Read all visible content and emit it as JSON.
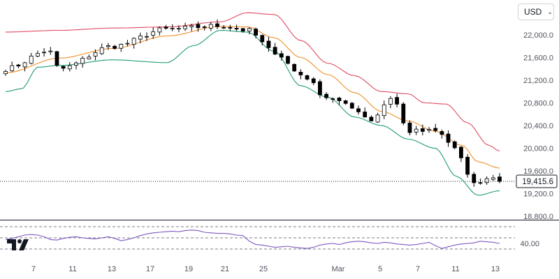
{
  "currency_selector": {
    "value": "USD"
  },
  "colors": {
    "up": "#000000",
    "down": "#000000",
    "upper_band": "#e04a5f",
    "middle_band": "#f0902a",
    "lower_band": "#1f9a7a",
    "rsi": "#7e57c2",
    "last_price_bg": "#ffffff",
    "axis_text": "#50535e",
    "grid_dash": "#50535e"
  },
  "icons": {
    "logo": "tradingview-logo-icon",
    "dropdown": "chevron-down-icon"
  },
  "chart_data": [
    {
      "type": "candlestick",
      "title": "",
      "y_ticks": [
        "22,000.0",
        "21,600.0",
        "21,200.0",
        "20,800.0",
        "20,400.0",
        "20,000.0",
        "19,600.0",
        "19,200.0",
        "18,800.0"
      ],
      "y_tick_values": [
        22000,
        21600,
        21200,
        20800,
        20400,
        20000,
        19600,
        19200,
        18800
      ],
      "ylim": [
        18800,
        22400
      ],
      "x_ticks": [
        "7",
        "11",
        "13",
        "17",
        "19",
        "21",
        "25",
        "Mar",
        "5",
        "7",
        "11",
        "13"
      ],
      "last_price": 19415.6,
      "last_price_label": "19,415.6",
      "overlays": [
        "Bollinger upper",
        "Bollinger basis",
        "Bollinger lower"
      ],
      "bollinger_anchors": {
        "upper": [
          [
            0,
            22050
          ],
          [
            0.1,
            22080
          ],
          [
            0.2,
            22120
          ],
          [
            0.3,
            22140
          ],
          [
            0.4,
            22230
          ],
          [
            0.45,
            22390
          ],
          [
            0.5,
            22360
          ],
          [
            0.55,
            21900
          ],
          [
            0.6,
            21500
          ],
          [
            0.65,
            21280
          ],
          [
            0.7,
            21000
          ],
          [
            0.75,
            20960
          ],
          [
            0.78,
            20800
          ],
          [
            0.82,
            20780
          ],
          [
            0.86,
            20450
          ],
          [
            0.9,
            20050
          ],
          [
            0.92,
            19950
          ]
        ],
        "middle": [
          [
            0,
            21330
          ],
          [
            0.1,
            21590
          ],
          [
            0.2,
            21760
          ],
          [
            0.3,
            21980
          ],
          [
            0.4,
            22150
          ],
          [
            0.45,
            22140
          ],
          [
            0.5,
            21950
          ],
          [
            0.55,
            21600
          ],
          [
            0.6,
            21300
          ],
          [
            0.65,
            20980
          ],
          [
            0.7,
            20650
          ],
          [
            0.75,
            20480
          ],
          [
            0.8,
            20300
          ],
          [
            0.85,
            20050
          ],
          [
            0.88,
            19760
          ],
          [
            0.92,
            19650
          ]
        ],
        "lower": [
          [
            0,
            21000
          ],
          [
            0.03,
            21050
          ],
          [
            0.06,
            21430
          ],
          [
            0.1,
            21460
          ],
          [
            0.2,
            21560
          ],
          [
            0.3,
            21510
          ],
          [
            0.35,
            21810
          ],
          [
            0.4,
            22080
          ],
          [
            0.45,
            22050
          ],
          [
            0.5,
            21710
          ],
          [
            0.55,
            21100
          ],
          [
            0.6,
            20900
          ],
          [
            0.65,
            20550
          ],
          [
            0.7,
            20400
          ],
          [
            0.75,
            20160
          ],
          [
            0.8,
            20000
          ],
          [
            0.84,
            19500
          ],
          [
            0.88,
            19170
          ],
          [
            0.92,
            19250
          ]
        ]
      },
      "close_anchors": [
        [
          0,
          21400
        ],
        [
          0.08,
          21720
        ],
        [
          0.1,
          21400
        ],
        [
          0.2,
          21800
        ],
        [
          0.3,
          22100
        ],
        [
          0.4,
          22160
        ],
        [
          0.45,
          22080
        ],
        [
          0.5,
          21700
        ],
        [
          0.55,
          21300
        ],
        [
          0.6,
          20900
        ],
        [
          0.65,
          20700
        ],
        [
          0.68,
          20500
        ],
        [
          0.72,
          20900
        ],
        [
          0.75,
          20300
        ],
        [
          0.8,
          20300
        ],
        [
          0.84,
          20000
        ],
        [
          0.86,
          19500
        ],
        [
          0.88,
          19350
        ],
        [
          0.9,
          19500
        ],
        [
          0.92,
          19415
        ]
      ]
    },
    {
      "type": "line",
      "name": "RSI",
      "y_tick_label": "40.00",
      "y_tick_value": 40,
      "ylim": [
        20,
        80
      ],
      "reference_levels": [
        70,
        50,
        30
      ],
      "values": [
        47,
        49,
        52,
        55,
        56,
        55,
        52,
        47,
        46,
        49,
        51,
        52,
        50,
        49,
        48,
        50,
        52,
        49,
        45,
        47,
        50,
        54,
        57,
        59,
        60,
        61,
        62,
        61,
        63,
        64,
        63,
        60,
        59,
        58,
        58,
        57,
        55,
        54,
        44,
        38,
        37,
        35,
        33,
        34,
        35,
        33,
        32,
        31,
        33,
        37,
        39,
        40,
        38,
        41,
        43,
        44,
        43,
        41,
        40,
        42,
        41,
        39,
        38,
        37,
        38,
        40,
        42,
        36,
        31,
        34,
        37,
        39,
        40,
        41,
        44,
        43,
        42,
        40
      ]
    }
  ]
}
